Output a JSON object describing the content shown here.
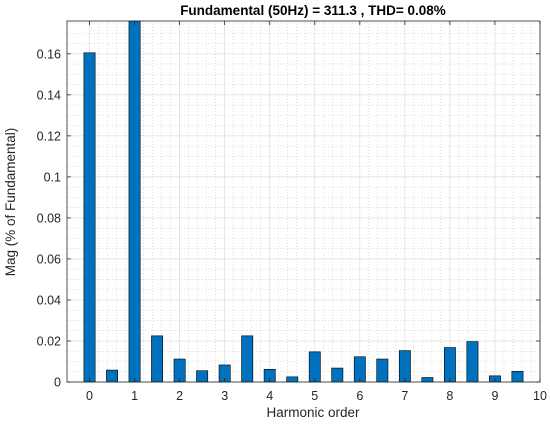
{
  "chart_data": {
    "type": "bar",
    "title": "Fundamental (50Hz) = 311.3 , THD= 0.08%",
    "xlabel": "Harmonic order",
    "ylabel": "Mag (% of Fundamental)",
    "xlim": [
      -0.5,
      10
    ],
    "ylim": [
      0,
      0.176
    ],
    "xticks": [
      0,
      1,
      2,
      3,
      4,
      5,
      6,
      7,
      8,
      9,
      10
    ],
    "xtick_labels": [
      "0",
      "1",
      "2",
      "3",
      "4",
      "5",
      "6",
      "7",
      "8",
      "9",
      "10"
    ],
    "yticks": [
      0,
      0.02,
      0.04,
      0.06,
      0.08,
      0.1,
      0.12,
      0.14,
      0.16
    ],
    "ytick_labels": [
      "0",
      "0.02",
      "0.04",
      "0.06",
      "0.08",
      "0.1",
      "0.12",
      "0.14",
      "0.16"
    ],
    "grid": true,
    "minor_grid": true,
    "bar_color": "#0072BD",
    "bar_width": 0.25,
    "x": [
      0,
      0.5,
      1,
      1.5,
      2,
      2.5,
      3,
      3.5,
      4,
      4.5,
      5,
      5.5,
      6,
      6.5,
      7,
      7.5,
      8,
      8.5,
      9,
      9.5
    ],
    "values": [
      0.1605,
      0.0058,
      0.176,
      0.0225,
      0.0112,
      0.0055,
      0.0083,
      0.0225,
      0.0062,
      0.0025,
      0.0147,
      0.0068,
      0.0123,
      0.0112,
      0.0153,
      0.0022,
      0.0168,
      0.0197,
      0.003,
      0.0052
    ]
  }
}
